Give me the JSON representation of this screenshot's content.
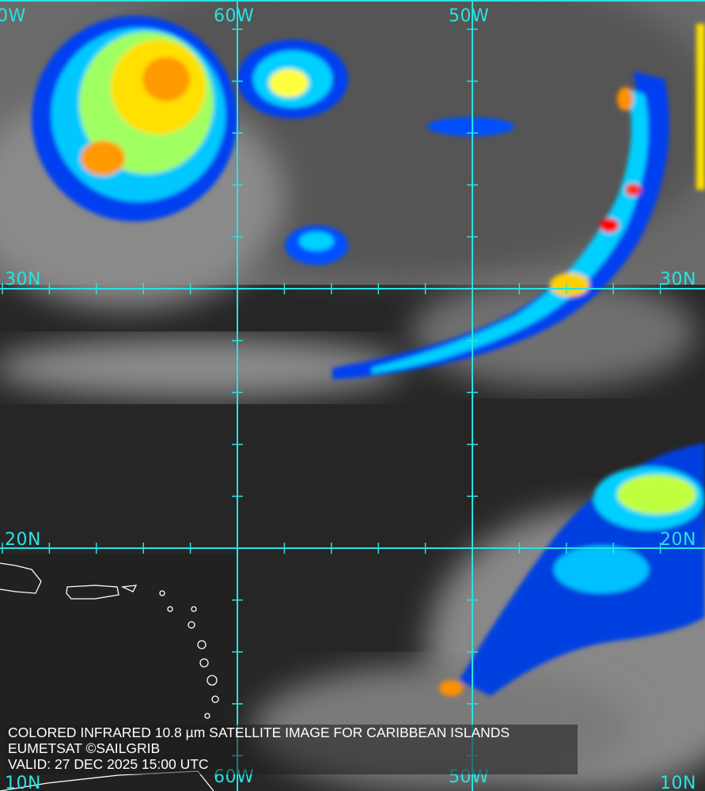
{
  "image_type": "colored infrared satellite image",
  "colors": {
    "grid": "#27e3e3",
    "coastline": "#ffffff",
    "cold_tops_scale": [
      "#0000c8",
      "#0060ff",
      "#00d0ff",
      "#80ff80",
      "#ffff00",
      "#ff9000",
      "#ff0000"
    ]
  },
  "grid_labels": {
    "top": [
      "0W",
      "60W",
      "50W"
    ],
    "bottom": [
      "10N",
      "60W",
      "50W",
      "10N"
    ],
    "left": [
      "30N",
      "20N"
    ],
    "right": [
      "30N",
      "20N"
    ]
  },
  "caption": {
    "line1": "COLORED INFRARED 10.8 µm SATELLITE IMAGE FOR CARIBBEAN ISLANDS",
    "line2": "EUMETSAT ©SAILGRIB",
    "line3": "VALID:  27 DEC 2025 15:00 UTC"
  }
}
